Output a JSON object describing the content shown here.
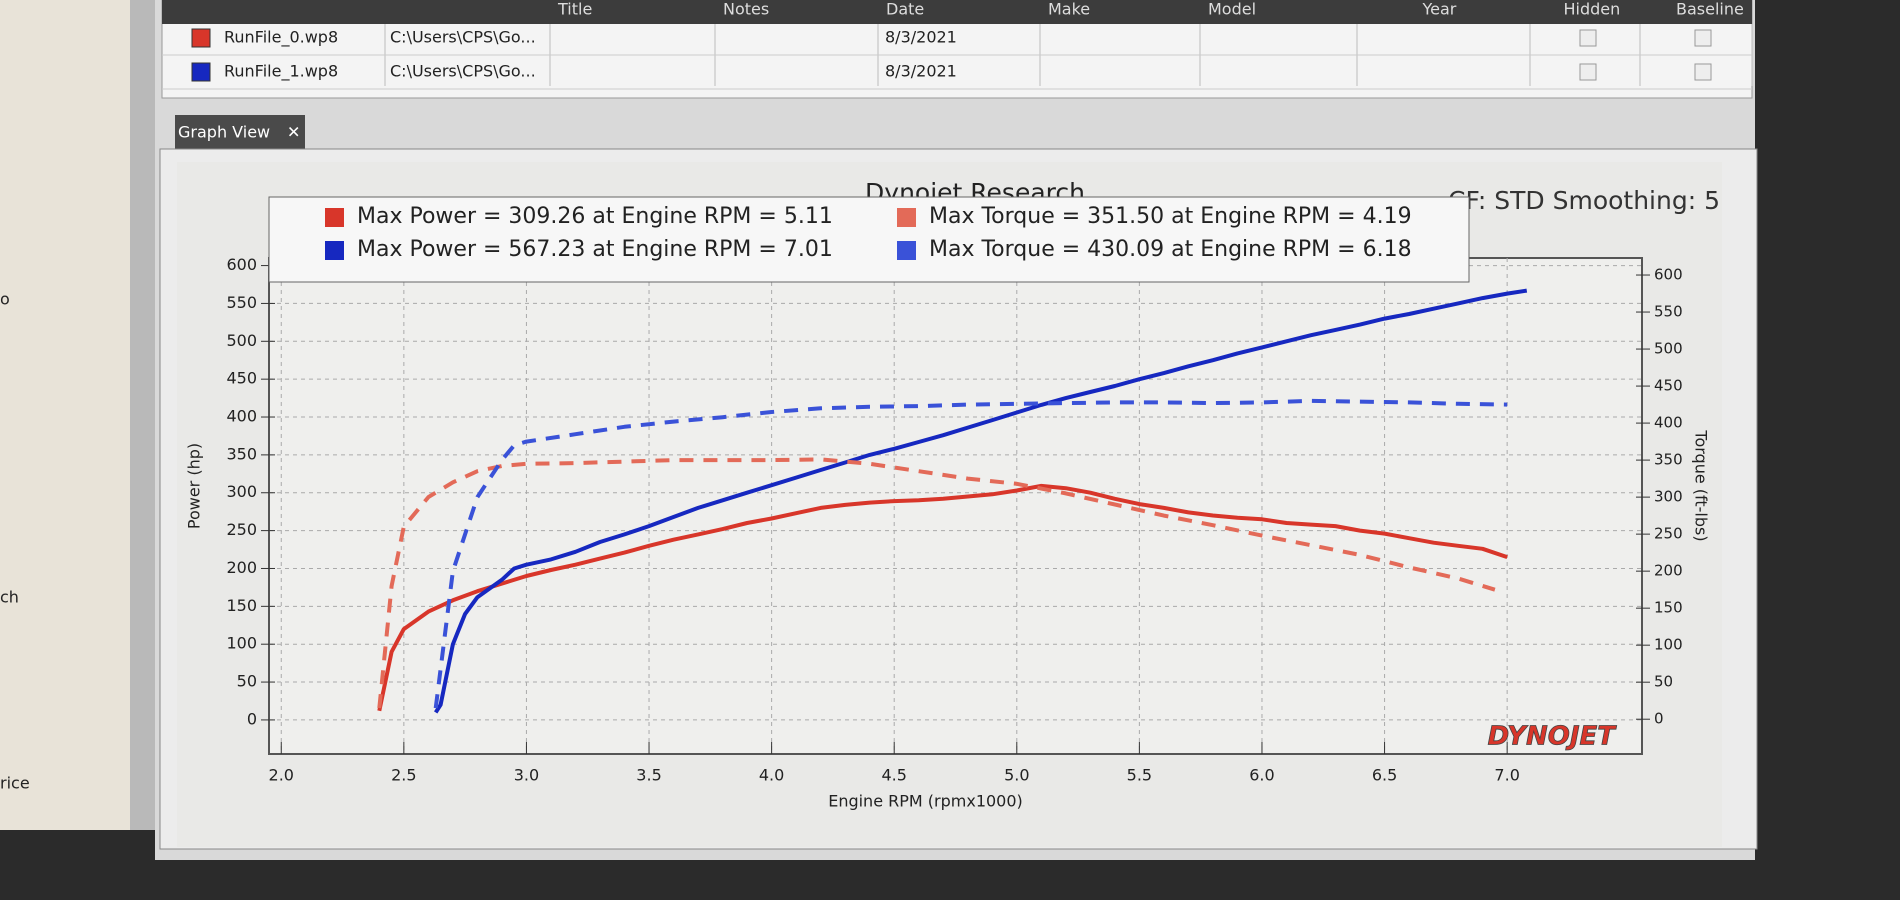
{
  "table": {
    "columns": [
      "Title",
      "Notes",
      "Date",
      "Make",
      "Model",
      "Year",
      "Hidden",
      "Baseline"
    ],
    "rows": [
      {
        "name": "RunFile_0.wp8",
        "path": "C:\\Users\\CPS\\Go...",
        "date": "8/3/2021"
      },
      {
        "name": "RunFile_1.wp8",
        "path": "C:\\Users\\CPS\\Go...",
        "date": "8/3/2021"
      }
    ]
  },
  "tab": "Graph View",
  "sidebar": [
    "o",
    "ch",
    "rice"
  ],
  "chart_data": {
    "type": "line",
    "title": "Dynojet Research",
    "subtitle": "CF: STD Smoothing: 5",
    "x_label": "Engine RPM (rpmx1000)",
    "y_label": "Power (hp)",
    "y2_label": "Torque (ft-lbs)",
    "logo": "DYNOJET",
    "xlim": [
      1.95,
      7.55
    ],
    "ylim": [
      -45,
      610
    ],
    "y2lim": [
      -47,
      623
    ],
    "grid": true,
    "xticks": [
      {
        "value": 2.0,
        "label": "2.0"
      },
      {
        "value": 2.5,
        "label": "2.5"
      },
      {
        "value": 3.0,
        "label": "3.0"
      },
      {
        "value": 3.5,
        "label": "3.5"
      },
      {
        "value": 4.0,
        "label": "4.0"
      },
      {
        "value": 4.5,
        "label": "4.5"
      },
      {
        "value": 5.0,
        "label": "5.0"
      },
      {
        "value": 5.5,
        "label": "5.5"
      },
      {
        "value": 6.0,
        "label": "6.0"
      },
      {
        "value": 6.5,
        "label": "6.5"
      },
      {
        "value": 7.0,
        "label": "7.0"
      }
    ],
    "yticks": [
      0,
      50,
      100,
      150,
      200,
      250,
      300,
      350,
      400,
      450,
      500,
      550,
      600
    ],
    "y2ticks": [
      0,
      50,
      100,
      150,
      200,
      250,
      300,
      350,
      400,
      450,
      500,
      550,
      600
    ],
    "series": [
      {
        "name": "Max Power = 309.26 at Engine RPM = 5.11",
        "color": "#d8362a",
        "dash": false,
        "x": [
          2.4,
          2.45,
          2.5,
          2.6,
          2.7,
          2.8,
          2.9,
          3.0,
          3.1,
          3.2,
          3.3,
          3.4,
          3.5,
          3.6,
          3.7,
          3.8,
          3.9,
          4.0,
          4.1,
          4.2,
          4.3,
          4.4,
          4.5,
          4.6,
          4.7,
          4.8,
          4.9,
          5.0,
          5.1,
          5.2,
          5.3,
          5.4,
          5.5,
          5.6,
          5.7,
          5.8,
          5.9,
          6.0,
          6.1,
          6.2,
          6.3,
          6.4,
          6.5,
          6.6,
          6.7,
          6.8,
          6.9,
          7.0
        ],
        "values": [
          12,
          90,
          120,
          143,
          158,
          170,
          180,
          190,
          198,
          205,
          213,
          221,
          230,
          238,
          245,
          252,
          260,
          266,
          273,
          280,
          284,
          287,
          289,
          290,
          292,
          295,
          298,
          303,
          309,
          306,
          300,
          292,
          285,
          280,
          274,
          270,
          267,
          265,
          260,
          258,
          256,
          250,
          246,
          240,
          234,
          230,
          226,
          215
        ]
      },
      {
        "name": "Max Power = 567.23 at Engine RPM = 7.01",
        "color": "#1628c0",
        "dash": false,
        "x": [
          2.63,
          2.65,
          2.7,
          2.75,
          2.8,
          2.9,
          2.95,
          3.0,
          3.1,
          3.2,
          3.3,
          3.4,
          3.5,
          3.6,
          3.7,
          3.8,
          3.9,
          4.0,
          4.1,
          4.2,
          4.3,
          4.4,
          4.5,
          4.6,
          4.7,
          4.8,
          4.9,
          5.0,
          5.1,
          5.2,
          5.3,
          5.4,
          5.5,
          5.6,
          5.7,
          5.8,
          5.9,
          6.0,
          6.1,
          6.2,
          6.3,
          6.4,
          6.5,
          6.6,
          6.7,
          6.8,
          6.9,
          7.0,
          7.08
        ],
        "values": [
          10,
          20,
          100,
          140,
          162,
          185,
          200,
          205,
          212,
          222,
          235,
          245,
          256,
          268,
          280,
          290,
          300,
          310,
          320,
          330,
          340,
          350,
          358,
          367,
          376,
          386,
          396,
          406,
          416,
          425,
          433,
          441,
          450,
          458,
          467,
          475,
          484,
          492,
          500,
          508,
          515,
          522,
          530,
          536,
          543,
          550,
          557,
          563,
          567
        ]
      },
      {
        "name": "Max Torque = 351.50 at Engine RPM = 4.19",
        "color": "#e36a58",
        "dash": true,
        "axis": "y2",
        "x": [
          2.4,
          2.45,
          2.5,
          2.6,
          2.7,
          2.8,
          2.9,
          3.0,
          3.2,
          3.4,
          3.6,
          3.8,
          4.0,
          4.2,
          4.4,
          4.6,
          4.8,
          5.0,
          5.2,
          5.4,
          5.6,
          5.8,
          6.0,
          6.2,
          6.4,
          6.6,
          6.8,
          6.95
        ],
        "values": [
          15,
          180,
          260,
          300,
          320,
          335,
          342,
          345,
          346,
          348,
          350,
          350,
          350,
          351,
          345,
          335,
          325,
          318,
          305,
          290,
          275,
          262,
          248,
          235,
          222,
          205,
          190,
          175
        ]
      },
      {
        "name": "Max Torque = 430.09 at Engine RPM = 6.18",
        "color": "#3a52d8",
        "dash": true,
        "axis": "y2",
        "x": [
          2.63,
          2.7,
          2.8,
          2.9,
          2.95,
          3.0,
          3.2,
          3.4,
          3.6,
          3.8,
          4.0,
          4.2,
          4.4,
          4.6,
          4.8,
          5.0,
          5.2,
          5.4,
          5.6,
          5.8,
          6.0,
          6.2,
          6.4,
          6.6,
          6.8,
          7.0
        ],
        "values": [
          15,
          200,
          300,
          350,
          370,
          375,
          385,
          395,
          402,
          408,
          415,
          420,
          422,
          423,
          425,
          426,
          427,
          428,
          428,
          427,
          428,
          430,
          429,
          428,
          426,
          425
        ]
      }
    ]
  }
}
